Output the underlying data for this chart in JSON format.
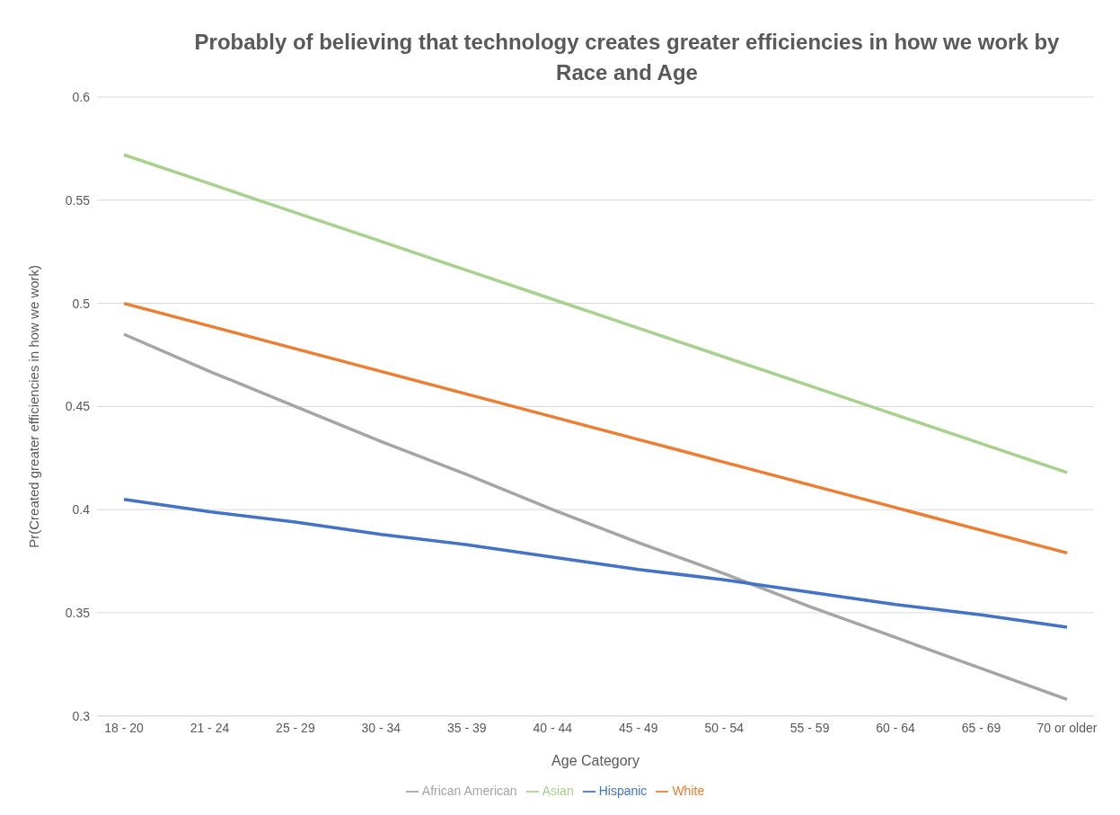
{
  "chart_data": {
    "type": "line",
    "title": "Probably of believing that technology creates greater efficiencies in how we work by Race and Age",
    "xlabel": "Age Category",
    "ylabel": "Pr(Created greater efficiencies in how we work)",
    "categories": [
      "18 - 20",
      "21 - 24",
      "25 - 29",
      "30 - 34",
      "35 - 39",
      "40 - 44",
      "45 - 49",
      "50 - 54",
      "55 - 59",
      "60 - 64",
      "65 - 69",
      "70 or older"
    ],
    "series": [
      {
        "name": "White",
        "color": "#ed7d31",
        "values": [
          0.5,
          0.489,
          0.478,
          0.467,
          0.456,
          0.445,
          0.434,
          0.423,
          0.412,
          0.401,
          0.39,
          0.379
        ]
      },
      {
        "name": "African American",
        "color": "#a5a5a5",
        "values": [
          0.485,
          0.467,
          0.45,
          0.433,
          0.417,
          0.4,
          0.384,
          0.369,
          0.353,
          0.338,
          0.323,
          0.308
        ]
      },
      {
        "name": "Asian",
        "color": "#a9d18e",
        "values": [
          0.572,
          0.558,
          0.544,
          0.53,
          0.516,
          0.502,
          0.488,
          0.474,
          0.46,
          0.446,
          0.432,
          0.418
        ]
      },
      {
        "name": "Hispanic",
        "color": "#4472c4",
        "values": [
          0.405,
          0.399,
          0.394,
          0.388,
          0.383,
          0.377,
          0.371,
          0.366,
          0.36,
          0.354,
          0.349,
          0.343
        ]
      }
    ],
    "ylim": [
      0.3,
      0.6
    ],
    "yticks": [
      0.3,
      0.35,
      0.4,
      0.45,
      0.5,
      0.55,
      0.6
    ],
    "grid": "y",
    "legend": "bottom",
    "marker": "none",
    "line_style": "solid"
  }
}
